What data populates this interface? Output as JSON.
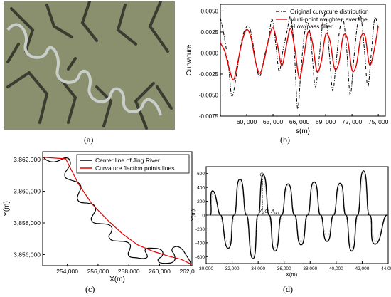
{
  "captions": {
    "a": "(a)",
    "b": "(b)",
    "c": "(c)",
    "d": "(d)"
  },
  "chart_data": [
    {
      "id": "a",
      "type": "image",
      "description_colors": {
        "ground": "#8a8f6e",
        "ridge": "#2b2e25",
        "river": "#c8cfcb"
      }
    },
    {
      "id": "b",
      "type": "line",
      "xlabel": "s(m)",
      "ylabel": "Curvature",
      "xlim": [
        57000,
        75800
      ],
      "ylim": [
        -0.0075,
        0.0058
      ],
      "xticks": [
        60000,
        63000,
        66000,
        69000,
        72000,
        75000
      ],
      "xtick_labels": [
        "60, 000",
        "63, 000",
        "66, 000",
        "69, 000",
        "72, 000",
        "75, 000"
      ],
      "yticks": [
        0.005,
        0.0025,
        0.0,
        -0.0025,
        -0.005,
        -0.0075
      ],
      "ytick_labels": [
        "0.0050",
        "0.0025",
        "0.0000",
        "-0.0025",
        "-0.0050",
        "-0.0075"
      ],
      "legend_position": "top-right",
      "series": [
        {
          "name": "Original curvature distribution",
          "color": "#000000",
          "style": "dash-dot",
          "x": [
            57000,
            57400,
            57900,
            58300,
            58800,
            59300,
            59800,
            60300,
            60700,
            61100,
            61500,
            62000,
            62500,
            62900,
            63300,
            63700,
            64100,
            64600,
            65000,
            65400,
            65800,
            66200,
            66600,
            67000,
            67400,
            67800,
            68200,
            68600,
            69000,
            69400,
            69800,
            70200,
            70600,
            71000,
            71400,
            71800,
            72200,
            72600,
            73000,
            73400,
            73800,
            74200,
            74600,
            75000
          ],
          "y": [
            0.0042,
            0.0022,
            -0.0012,
            -0.0051,
            -0.0028,
            0.0008,
            0.0028,
            0.0031,
            0.0012,
            -0.0015,
            -0.0028,
            -0.0005,
            0.0018,
            0.004,
            0.0012,
            -0.0022,
            0.0001,
            0.0026,
            0.0043,
            0.0008,
            -0.0066,
            -0.0018,
            0.0024,
            0.0036,
            0.0005,
            -0.004,
            -0.0012,
            0.003,
            0.0045,
            0.0002,
            -0.0045,
            -0.001,
            0.0028,
            0.004,
            0.0004,
            -0.005,
            -0.0008,
            0.0032,
            0.0044,
            0.0006,
            -0.004,
            0.0,
            0.0042,
            0.0028
          ]
        },
        {
          "name": "Multi-point weighted average +Low-pass filter",
          "color": "#e60000",
          "style": "solid",
          "x": [
            57000,
            57500,
            58000,
            58500,
            59000,
            59500,
            60000,
            60500,
            61000,
            61500,
            62000,
            62500,
            63000,
            63500,
            64000,
            64500,
            65000,
            65500,
            66000,
            66500,
            67000,
            67500,
            68000,
            68500,
            69000,
            69500,
            70000,
            70500,
            71000,
            71500,
            72000,
            72500,
            73000,
            73500,
            74000,
            74500,
            75000
          ],
          "y": [
            0.0012,
            0.0002,
            -0.0018,
            -0.0032,
            -0.001,
            0.0015,
            0.0028,
            0.0018,
            -0.001,
            -0.0024,
            -0.0008,
            0.0016,
            0.003,
            0.001,
            -0.0015,
            0.0008,
            0.0029,
            0.0004,
            -0.003,
            -0.0005,
            0.0025,
            0.0012,
            -0.0022,
            -0.001,
            0.0022,
            0.0014,
            -0.0018,
            -0.0012,
            0.002,
            0.0016,
            -0.002,
            -0.0014,
            0.0018,
            0.002,
            -0.0014,
            0.0002,
            0.0032
          ]
        }
      ]
    },
    {
      "id": "c",
      "type": "line",
      "xlabel": "X(m)",
      "ylabel": "Y(m)",
      "xlim": [
        252400,
        262100
      ],
      "ylim": [
        3855300,
        3862500
      ],
      "xticks": [
        254000,
        256000,
        258000,
        260000,
        262000
      ],
      "xtick_labels": [
        "254,000",
        "256,000",
        "258,000",
        "260,000",
        "262,000"
      ],
      "yticks": [
        3856000,
        3858000,
        3860000,
        3862000
      ],
      "ytick_labels": [
        "3,856,000",
        "3,858,000",
        "3,860,000",
        "3,862,000"
      ],
      "legend_position": "top-right",
      "series": [
        {
          "name": "Center line of Jing River",
          "color": "#000000",
          "x": [
            252450,
            252700,
            253100,
            253500,
            253800,
            254100,
            254200,
            254050,
            253850,
            253900,
            254250,
            254700,
            254900,
            254750,
            254650,
            254850,
            255300,
            255700,
            255850,
            255700,
            255550,
            255750,
            256200,
            256650,
            256900,
            256850,
            256700,
            256900,
            257400,
            257850,
            258100,
            258050,
            257950,
            258100,
            258500,
            258950,
            259200,
            259150,
            259050,
            259200,
            259600,
            260000,
            260200,
            260150,
            259900,
            260000,
            260400,
            260800,
            261000,
            260950,
            260800,
            260900,
            261200,
            261500,
            261700,
            261900,
            262050
          ],
          "y": [
            3862150,
            3861950,
            3861850,
            3861950,
            3862100,
            3862050,
            3861750,
            3861450,
            3861150,
            3860850,
            3860700,
            3860550,
            3860250,
            3859900,
            3859550,
            3859300,
            3859250,
            3859150,
            3858850,
            3858550,
            3858250,
            3858000,
            3857950,
            3857900,
            3857700,
            3857400,
            3857150,
            3856900,
            3856850,
            3856800,
            3856600,
            3856300,
            3856050,
            3855850,
            3855800,
            3855750,
            3855850,
            3856050,
            3856250,
            3856400,
            3856400,
            3856350,
            3856150,
            3855900,
            3855700,
            3855500,
            3855450,
            3855500,
            3855700,
            3856000,
            3856250,
            3856450,
            3856500,
            3856300,
            3856000,
            3855700,
            3855400
          ]
        },
        {
          "name": "Curvature flection points lines",
          "color": "#e60000",
          "x": [
            252450,
            253900,
            254700,
            255600,
            256600,
            257600,
            258600,
            259600,
            260600,
            261400,
            262050
          ],
          "y": [
            3862150,
            3862050,
            3860500,
            3859200,
            3858200,
            3857300,
            3856600,
            3856200,
            3855900,
            3855700,
            3855400
          ]
        }
      ]
    },
    {
      "id": "d",
      "type": "line",
      "xlabel": "X(m)",
      "ylabel": "Y(m)",
      "xlim": [
        30000,
        44000
      ],
      "ylim": [
        -700,
        700
      ],
      "xticks": [
        30000,
        32000,
        34000,
        36000,
        38000,
        40000,
        42000,
        44000
      ],
      "xtick_labels": [
        "30,000",
        "32,000",
        "34,000",
        "36,000",
        "38,000",
        "40,000",
        "42,000",
        "44,000"
      ],
      "yticks": [
        600,
        400,
        200,
        0,
        -200,
        -400,
        -600
      ],
      "ytick_labels": [
        "600",
        "400",
        "200",
        "0",
        "-200",
        "-400",
        "-600"
      ],
      "annotations": [
        "C",
        "A",
        "O",
        "A"
      ],
      "annotation_subscripts": [
        "",
        "i",
        "i",
        "i+1"
      ],
      "meander_peaks_x": [
        30500,
        31700,
        32600,
        33600,
        34400,
        35300,
        36300,
        37300,
        38300,
        39300,
        40300,
        41200,
        42100,
        43000
      ],
      "meander_peaks_y": [
        350,
        -480,
        520,
        -630,
        580,
        -520,
        450,
        -430,
        480,
        -380,
        460,
        -520,
        640,
        -420
      ],
      "series": [
        {
          "name": "",
          "color": "#000000"
        }
      ]
    }
  ]
}
